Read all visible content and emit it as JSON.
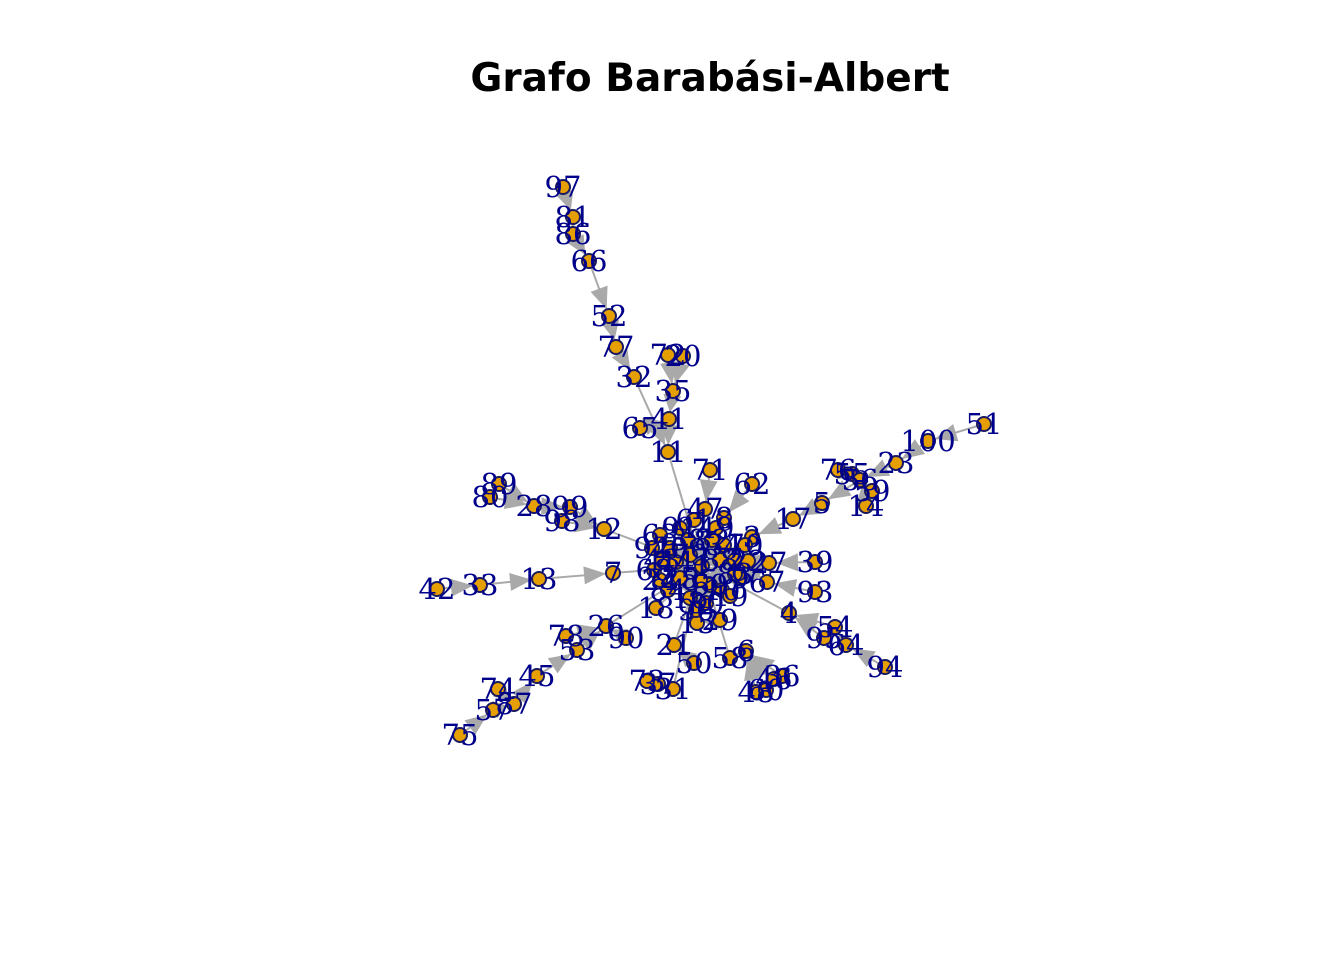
{
  "title": "Grafo Barabási-Albert",
  "style": {
    "node_fill": "#e69f00",
    "node_stroke": "#1a1a60",
    "label_color": "#00008b",
    "edge_color": "#a9a9a9"
  },
  "graph": {
    "directed": true,
    "edges": [
      [
        "97",
        "81"
      ],
      [
        "81",
        "86"
      ],
      [
        "86",
        "66"
      ],
      [
        "66",
        "52"
      ],
      [
        "52",
        "77"
      ],
      [
        "77",
        "32"
      ],
      [
        "32",
        "11"
      ],
      [
        "72",
        "35"
      ],
      [
        "20",
        "35"
      ],
      [
        "35",
        "41"
      ],
      [
        "65",
        "41"
      ],
      [
        "41",
        "11"
      ],
      [
        "11",
        "1"
      ],
      [
        "71",
        "47"
      ],
      [
        "62",
        "8"
      ],
      [
        "47",
        "1"
      ],
      [
        "8",
        "1"
      ],
      [
        "51",
        "100"
      ],
      [
        "100",
        "23"
      ],
      [
        "23",
        "56"
      ],
      [
        "76",
        "56"
      ],
      [
        "55",
        "56"
      ],
      [
        "59",
        "56"
      ],
      [
        "14",
        "56"
      ],
      [
        "56",
        "5"
      ],
      [
        "5",
        "17"
      ],
      [
        "17",
        "3"
      ],
      [
        "3",
        "1"
      ],
      [
        "39",
        "27"
      ],
      [
        "27",
        "2"
      ],
      [
        "93",
        "67"
      ],
      [
        "67",
        "2"
      ],
      [
        "2",
        "1"
      ],
      [
        "94",
        "64"
      ],
      [
        "64",
        "54"
      ],
      [
        "54",
        "4"
      ],
      [
        "95",
        "4"
      ],
      [
        "4",
        "1"
      ],
      [
        "36",
        "6"
      ],
      [
        "46",
        "6"
      ],
      [
        "48",
        "6"
      ],
      [
        "60",
        "6"
      ],
      [
        "6",
        "58"
      ],
      [
        "58",
        "1"
      ],
      [
        "29",
        "15"
      ],
      [
        "50",
        "21"
      ],
      [
        "21",
        "1"
      ],
      [
        "15",
        "1"
      ],
      [
        "73",
        "31"
      ],
      [
        "37",
        "31"
      ],
      [
        "31",
        "1"
      ],
      [
        "90",
        "26"
      ],
      [
        "78",
        "26"
      ],
      [
        "53",
        "26"
      ],
      [
        "26",
        "1"
      ],
      [
        "75",
        "57"
      ],
      [
        "74",
        "87"
      ],
      [
        "57",
        "87"
      ],
      [
        "87",
        "45"
      ],
      [
        "45",
        "53"
      ],
      [
        "42",
        "33"
      ],
      [
        "33",
        "13"
      ],
      [
        "13",
        "7"
      ],
      [
        "7",
        "1"
      ],
      [
        "89",
        "28"
      ],
      [
        "80",
        "28"
      ],
      [
        "28",
        "99"
      ],
      [
        "98",
        "12"
      ],
      [
        "99",
        "12"
      ],
      [
        "12",
        "1"
      ],
      [
        "18",
        "1"
      ],
      [
        "9",
        "1"
      ],
      [
        "10",
        "1"
      ],
      [
        "16",
        "1"
      ],
      [
        "19",
        "1"
      ],
      [
        "22",
        "1"
      ],
      [
        "24",
        "1"
      ],
      [
        "25",
        "1"
      ],
      [
        "30",
        "1"
      ],
      [
        "34",
        "1"
      ],
      [
        "38",
        "1"
      ],
      [
        "40",
        "1"
      ],
      [
        "43",
        "1"
      ],
      [
        "44",
        "1"
      ],
      [
        "49",
        "1"
      ],
      [
        "61",
        "1"
      ],
      [
        "63",
        "1"
      ],
      [
        "68",
        "1"
      ],
      [
        "69",
        "1"
      ],
      [
        "70",
        "1"
      ],
      [
        "79",
        "1"
      ],
      [
        "82",
        "1"
      ],
      [
        "83",
        "1"
      ],
      [
        "84",
        "1"
      ],
      [
        "85",
        "1"
      ],
      [
        "88",
        "1"
      ],
      [
        "91",
        "1"
      ],
      [
        "92",
        "1"
      ],
      [
        "96",
        "1"
      ]
    ],
    "nodes": [
      "1",
      "2",
      "3",
      "4",
      "5",
      "6",
      "7",
      "8",
      "9",
      "10",
      "11",
      "12",
      "13",
      "14",
      "15",
      "16",
      "17",
      "18",
      "19",
      "20",
      "21",
      "22",
      "23",
      "24",
      "25",
      "26",
      "27",
      "28",
      "29",
      "30",
      "31",
      "32",
      "33",
      "34",
      "35",
      "36",
      "37",
      "38",
      "39",
      "40",
      "41",
      "42",
      "43",
      "44",
      "45",
      "46",
      "47",
      "48",
      "49",
      "50",
      "51",
      "52",
      "53",
      "54",
      "55",
      "56",
      "57",
      "58",
      "59",
      "60",
      "61",
      "62",
      "63",
      "64",
      "65",
      "66",
      "67",
      "68",
      "69",
      "70",
      "71",
      "72",
      "73",
      "74",
      "75",
      "76",
      "77",
      "78",
      "79",
      "80",
      "81",
      "82",
      "83",
      "84",
      "85",
      "86",
      "87",
      "88",
      "89",
      "90",
      "91",
      "92",
      "93",
      "94",
      "95",
      "96",
      "97",
      "98",
      "99",
      "100"
    ]
  }
}
